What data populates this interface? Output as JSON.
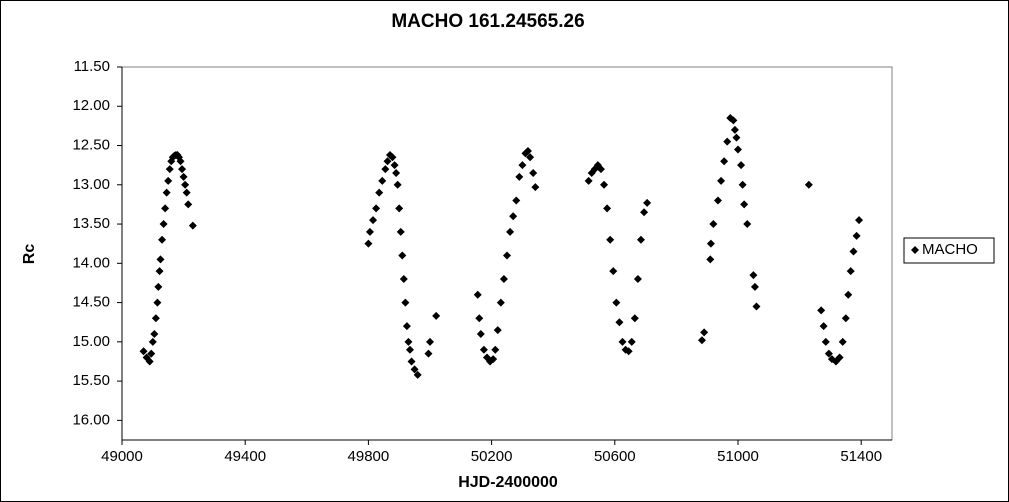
{
  "chart_data": {
    "type": "scatter",
    "title": "MACHO 161.24565.26",
    "x_label": "HJD-2400000",
    "y_label": "Rc",
    "xlim": [
      49000,
      51500
    ],
    "xticks": [
      49000,
      49400,
      49800,
      50200,
      50600,
      51000,
      51400
    ],
    "ylim": [
      11.5,
      16.25
    ],
    "y_inverted": true,
    "yticks": [
      {
        "value": 11.5,
        "label": "11.50"
      },
      {
        "value": 12,
        "label": "12.00"
      },
      {
        "value": 12.5,
        "label": "12.50"
      },
      {
        "value": 13,
        "label": "13.00"
      },
      {
        "value": 13.5,
        "label": "13.50"
      },
      {
        "value": 14,
        "label": "14.00"
      },
      {
        "value": 14.5,
        "label": "14.50"
      },
      {
        "value": 15,
        "label": "15.00"
      },
      {
        "value": 15.5,
        "label": "15.50"
      },
      {
        "value": 16,
        "label": "16.00"
      }
    ],
    "grid": false,
    "legend": "right",
    "x": [
      49070,
      49080,
      49090,
      49095,
      49100,
      49105,
      49110,
      49115,
      49118,
      49122,
      49125,
      49130,
      49135,
      49140,
      49145,
      49150,
      49155,
      49160,
      49165,
      49170,
      49175,
      49180,
      49185,
      49190,
      49195,
      49200,
      49205,
      49210,
      49215,
      49230,
      49800,
      49805,
      49815,
      49825,
      49835,
      49845,
      49855,
      49862,
      49870,
      49878,
      49885,
      49890,
      49895,
      49900,
      49905,
      49910,
      49915,
      49920,
      49925,
      49930,
      49935,
      49940,
      49950,
      49960,
      49995,
      50000,
      50020,
      50155,
      50160,
      50165,
      50175,
      50185,
      50195,
      50205,
      50212,
      50220,
      50230,
      50240,
      50250,
      50260,
      50270,
      50280,
      50290,
      50300,
      50310,
      50318,
      50325,
      50335,
      50342,
      50515,
      50525,
      50535,
      50545,
      50555,
      50565,
      50575,
      50585,
      50595,
      50605,
      50615,
      50625,
      50635,
      50645,
      50655,
      50665,
      50675,
      50685,
      50695,
      50705,
      50883,
      50890,
      50910,
      50912,
      50920,
      50935,
      50945,
      50955,
      50965,
      50975,
      50985,
      50990,
      50995,
      51000,
      51010,
      51015,
      51020,
      51030,
      51050,
      51055,
      51060,
      51230,
      51270,
      51278,
      51285,
      51295,
      51305,
      51318,
      51330,
      51340,
      51350,
      51358,
      51366,
      51375,
      51385,
      51393
    ],
    "series": [
      {
        "name": "MACHO",
        "color": "#000000",
        "values": [
          15.12,
          15.2,
          15.25,
          15.15,
          15.0,
          14.9,
          14.7,
          14.5,
          14.3,
          14.1,
          13.95,
          13.7,
          13.5,
          13.3,
          13.1,
          12.95,
          12.8,
          12.7,
          12.65,
          12.63,
          12.62,
          12.62,
          12.65,
          12.7,
          12.8,
          12.9,
          13.0,
          13.1,
          13.25,
          13.52,
          13.75,
          13.6,
          13.45,
          13.3,
          13.1,
          12.95,
          12.8,
          12.7,
          12.62,
          12.65,
          12.75,
          12.85,
          13.0,
          13.3,
          13.6,
          13.9,
          14.2,
          14.5,
          14.8,
          15.0,
          15.1,
          15.25,
          15.35,
          15.42,
          15.15,
          15.0,
          14.67,
          14.4,
          14.7,
          14.9,
          15.1,
          15.2,
          15.25,
          15.22,
          15.1,
          14.85,
          14.5,
          14.2,
          13.9,
          13.6,
          13.4,
          13.2,
          12.9,
          12.75,
          12.6,
          12.57,
          12.65,
          12.85,
          13.03,
          12.95,
          12.85,
          12.8,
          12.75,
          12.8,
          13.0,
          13.3,
          13.7,
          14.1,
          14.5,
          14.75,
          15.0,
          15.1,
          15.12,
          15.0,
          14.7,
          14.2,
          13.7,
          13.35,
          13.23,
          14.98,
          14.88,
          13.95,
          13.75,
          13.5,
          13.2,
          12.95,
          12.7,
          12.45,
          12.15,
          12.18,
          12.3,
          12.4,
          12.55,
          12.75,
          13.0,
          13.25,
          13.5,
          14.15,
          14.3,
          14.55,
          13.0,
          14.6,
          14.8,
          15.0,
          15.15,
          15.22,
          15.25,
          15.2,
          15.0,
          14.7,
          14.4,
          14.1,
          13.85,
          13.65,
          13.45
        ]
      }
    ]
  }
}
